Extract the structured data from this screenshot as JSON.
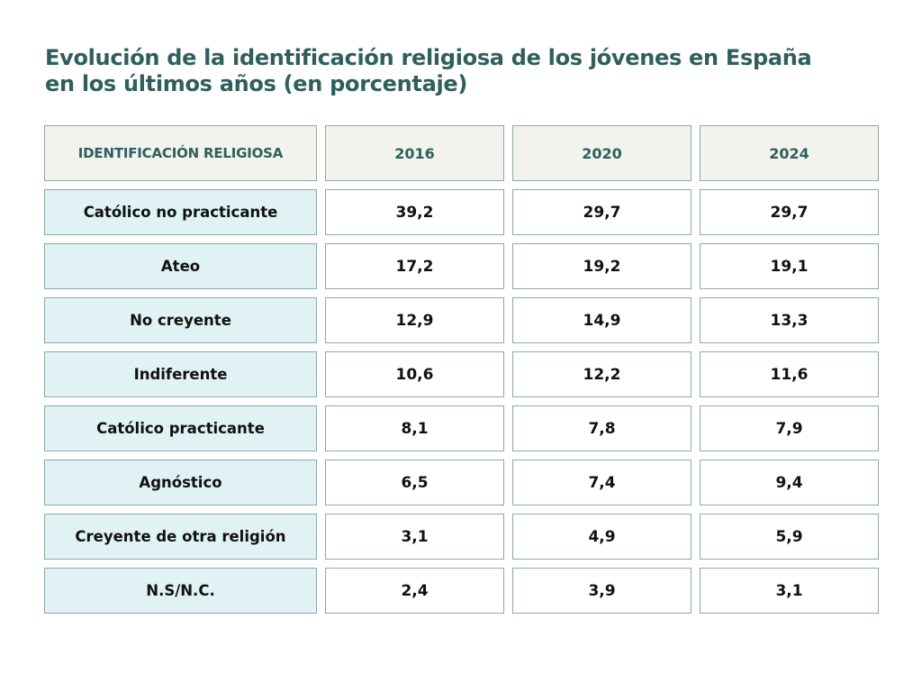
{
  "title": {
    "line1": "Evolución de la identificación religiosa de los jóvenes en España",
    "line2": "en los últimos años (en porcentaje)"
  },
  "table": {
    "header": [
      "IDENTIFICACIÓN RELIGIOSA",
      "2016",
      "2020",
      "2024"
    ],
    "rows": [
      [
        "Católico no practicante",
        "39,2",
        "29,7",
        "29,7"
      ],
      [
        "Ateo",
        "17,2",
        "19,2",
        "19,1"
      ],
      [
        "No creyente",
        "12,9",
        "14,9",
        "13,3"
      ],
      [
        "Indiferente",
        "10,6",
        "12,2",
        "11,6"
      ],
      [
        "Católico practicante",
        "8,1",
        "7,8",
        "7,9"
      ],
      [
        "Agnóstico",
        "6,5",
        "7,4",
        "9,4"
      ],
      [
        "Creyente de otra religión",
        "3,1",
        "4,9",
        "5,9"
      ],
      [
        "N.S/N.C.",
        "2,4",
        "3,9",
        "3,1"
      ]
    ]
  },
  "colors": {
    "title": "#2f5f5d",
    "header_bg": "#f2f3ee",
    "row_label_bg": "#e0f2f3",
    "value_bg": "#ffffff",
    "border": "#8fa8a8"
  },
  "chart_data": {
    "type": "table",
    "title": "Evolución de la identificación religiosa de los jóvenes en España en los últimos años (en porcentaje)",
    "categories": [
      "Católico no practicante",
      "Ateo",
      "No creyente",
      "Indiferente",
      "Católico practicante",
      "Agnóstico",
      "Creyente de otra religión",
      "N.S/N.C."
    ],
    "row_header": "IDENTIFICACIÓN RELIGIOSA",
    "series": [
      {
        "name": "2016",
        "values": [
          39.2,
          17.2,
          12.9,
          10.6,
          8.1,
          6.5,
          3.1,
          2.4
        ]
      },
      {
        "name": "2020",
        "values": [
          29.7,
          19.2,
          14.9,
          12.2,
          7.8,
          7.4,
          4.9,
          3.9
        ]
      },
      {
        "name": "2024",
        "values": [
          29.7,
          19.1,
          13.3,
          11.6,
          7.9,
          9.4,
          5.9,
          3.1
        ]
      }
    ],
    "unit": "%"
  }
}
